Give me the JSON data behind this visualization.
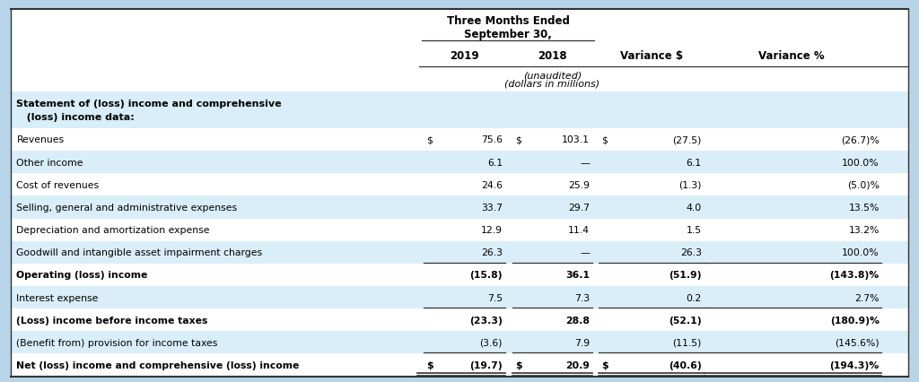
{
  "title_line1": "Three Months Ended",
  "title_line2": "September 30,",
  "col_headers": [
    "2019",
    "2018",
    "Variance $",
    "Variance %"
  ],
  "subheader_line1": "(unaudited)",
  "subheader_line2": "(dollars in millions)",
  "section_header_line1": "Statement of (loss) income and comprehensive",
  "section_header_line2": "   (loss) income data:",
  "rows": [
    {
      "label": "Revenues",
      "v2019": "75.6",
      "v2018": "103.1",
      "vdollar": "(27.5)",
      "vpct": "(26.7)%",
      "bold": false,
      "dollar_sign_2019": true,
      "dollar_sign_2018": true,
      "dollar_sign_var": true,
      "bg": "white",
      "single_bottom": false,
      "double_bottom": false
    },
    {
      "label": "Other income",
      "v2019": "6.1",
      "v2018": "—",
      "vdollar": "6.1",
      "vpct": "100.0%",
      "bold": false,
      "dollar_sign_2019": false,
      "dollar_sign_2018": false,
      "dollar_sign_var": false,
      "bg": "light_blue",
      "single_bottom": false,
      "double_bottom": false
    },
    {
      "label": "Cost of revenues",
      "v2019": "24.6",
      "v2018": "25.9",
      "vdollar": "(1.3)",
      "vpct": "(5.0)%",
      "bold": false,
      "dollar_sign_2019": false,
      "dollar_sign_2018": false,
      "dollar_sign_var": false,
      "bg": "white",
      "single_bottom": false,
      "double_bottom": false
    },
    {
      "label": "Selling, general and administrative expenses",
      "v2019": "33.7",
      "v2018": "29.7",
      "vdollar": "4.0",
      "vpct": "13.5%",
      "bold": false,
      "dollar_sign_2019": false,
      "dollar_sign_2018": false,
      "dollar_sign_var": false,
      "bg": "light_blue",
      "single_bottom": false,
      "double_bottom": false
    },
    {
      "label": "Depreciation and amortization expense",
      "v2019": "12.9",
      "v2018": "11.4",
      "vdollar": "1.5",
      "vpct": "13.2%",
      "bold": false,
      "dollar_sign_2019": false,
      "dollar_sign_2018": false,
      "dollar_sign_var": false,
      "bg": "white",
      "single_bottom": false,
      "double_bottom": false
    },
    {
      "label": "Goodwill and intangible asset impairment charges",
      "v2019": "26.3",
      "v2018": "—",
      "vdollar": "26.3",
      "vpct": "100.0%",
      "bold": false,
      "dollar_sign_2019": false,
      "dollar_sign_2018": false,
      "dollar_sign_var": false,
      "bg": "light_blue",
      "single_bottom": true,
      "double_bottom": false
    },
    {
      "label": "Operating (loss) income",
      "v2019": "(15.8)",
      "v2018": "36.1",
      "vdollar": "(51.9)",
      "vpct": "(143.8)%",
      "bold": true,
      "dollar_sign_2019": false,
      "dollar_sign_2018": false,
      "dollar_sign_var": false,
      "bg": "white",
      "single_bottom": false,
      "double_bottom": false
    },
    {
      "label": "Interest expense",
      "v2019": "7.5",
      "v2018": "7.3",
      "vdollar": "0.2",
      "vpct": "2.7%",
      "bold": false,
      "dollar_sign_2019": false,
      "dollar_sign_2018": false,
      "dollar_sign_var": false,
      "bg": "light_blue",
      "single_bottom": true,
      "double_bottom": false
    },
    {
      "label": "(Loss) income before income taxes",
      "v2019": "(23.3)",
      "v2018": "28.8",
      "vdollar": "(52.1)",
      "vpct": "(180.9)%",
      "bold": true,
      "dollar_sign_2019": false,
      "dollar_sign_2018": false,
      "dollar_sign_var": false,
      "bg": "white",
      "single_bottom": false,
      "double_bottom": false
    },
    {
      "label": "(Benefit from) provision for income taxes",
      "v2019": "(3.6)",
      "v2018": "7.9",
      "vdollar": "(11.5)",
      "vpct": "(145.6%)",
      "bold": false,
      "dollar_sign_2019": false,
      "dollar_sign_2018": false,
      "dollar_sign_var": false,
      "bg": "light_blue",
      "single_bottom": true,
      "double_bottom": false
    },
    {
      "label": "Net (loss) income and comprehensive (loss) income",
      "v2019": "(19.7)",
      "v2018": "20.9",
      "vdollar": "(40.6)",
      "vpct": "(194.3)%",
      "bold": true,
      "dollar_sign_2019": true,
      "dollar_sign_2018": true,
      "dollar_sign_var": true,
      "bg": "white",
      "single_bottom": false,
      "double_bottom": true
    }
  ],
  "bg_light_blue": "#d9eef8",
  "bg_white": "#ffffff",
  "bg_header_white": "#ffffff",
  "outer_bg": "#b8d4e8",
  "line_color": "#333333"
}
